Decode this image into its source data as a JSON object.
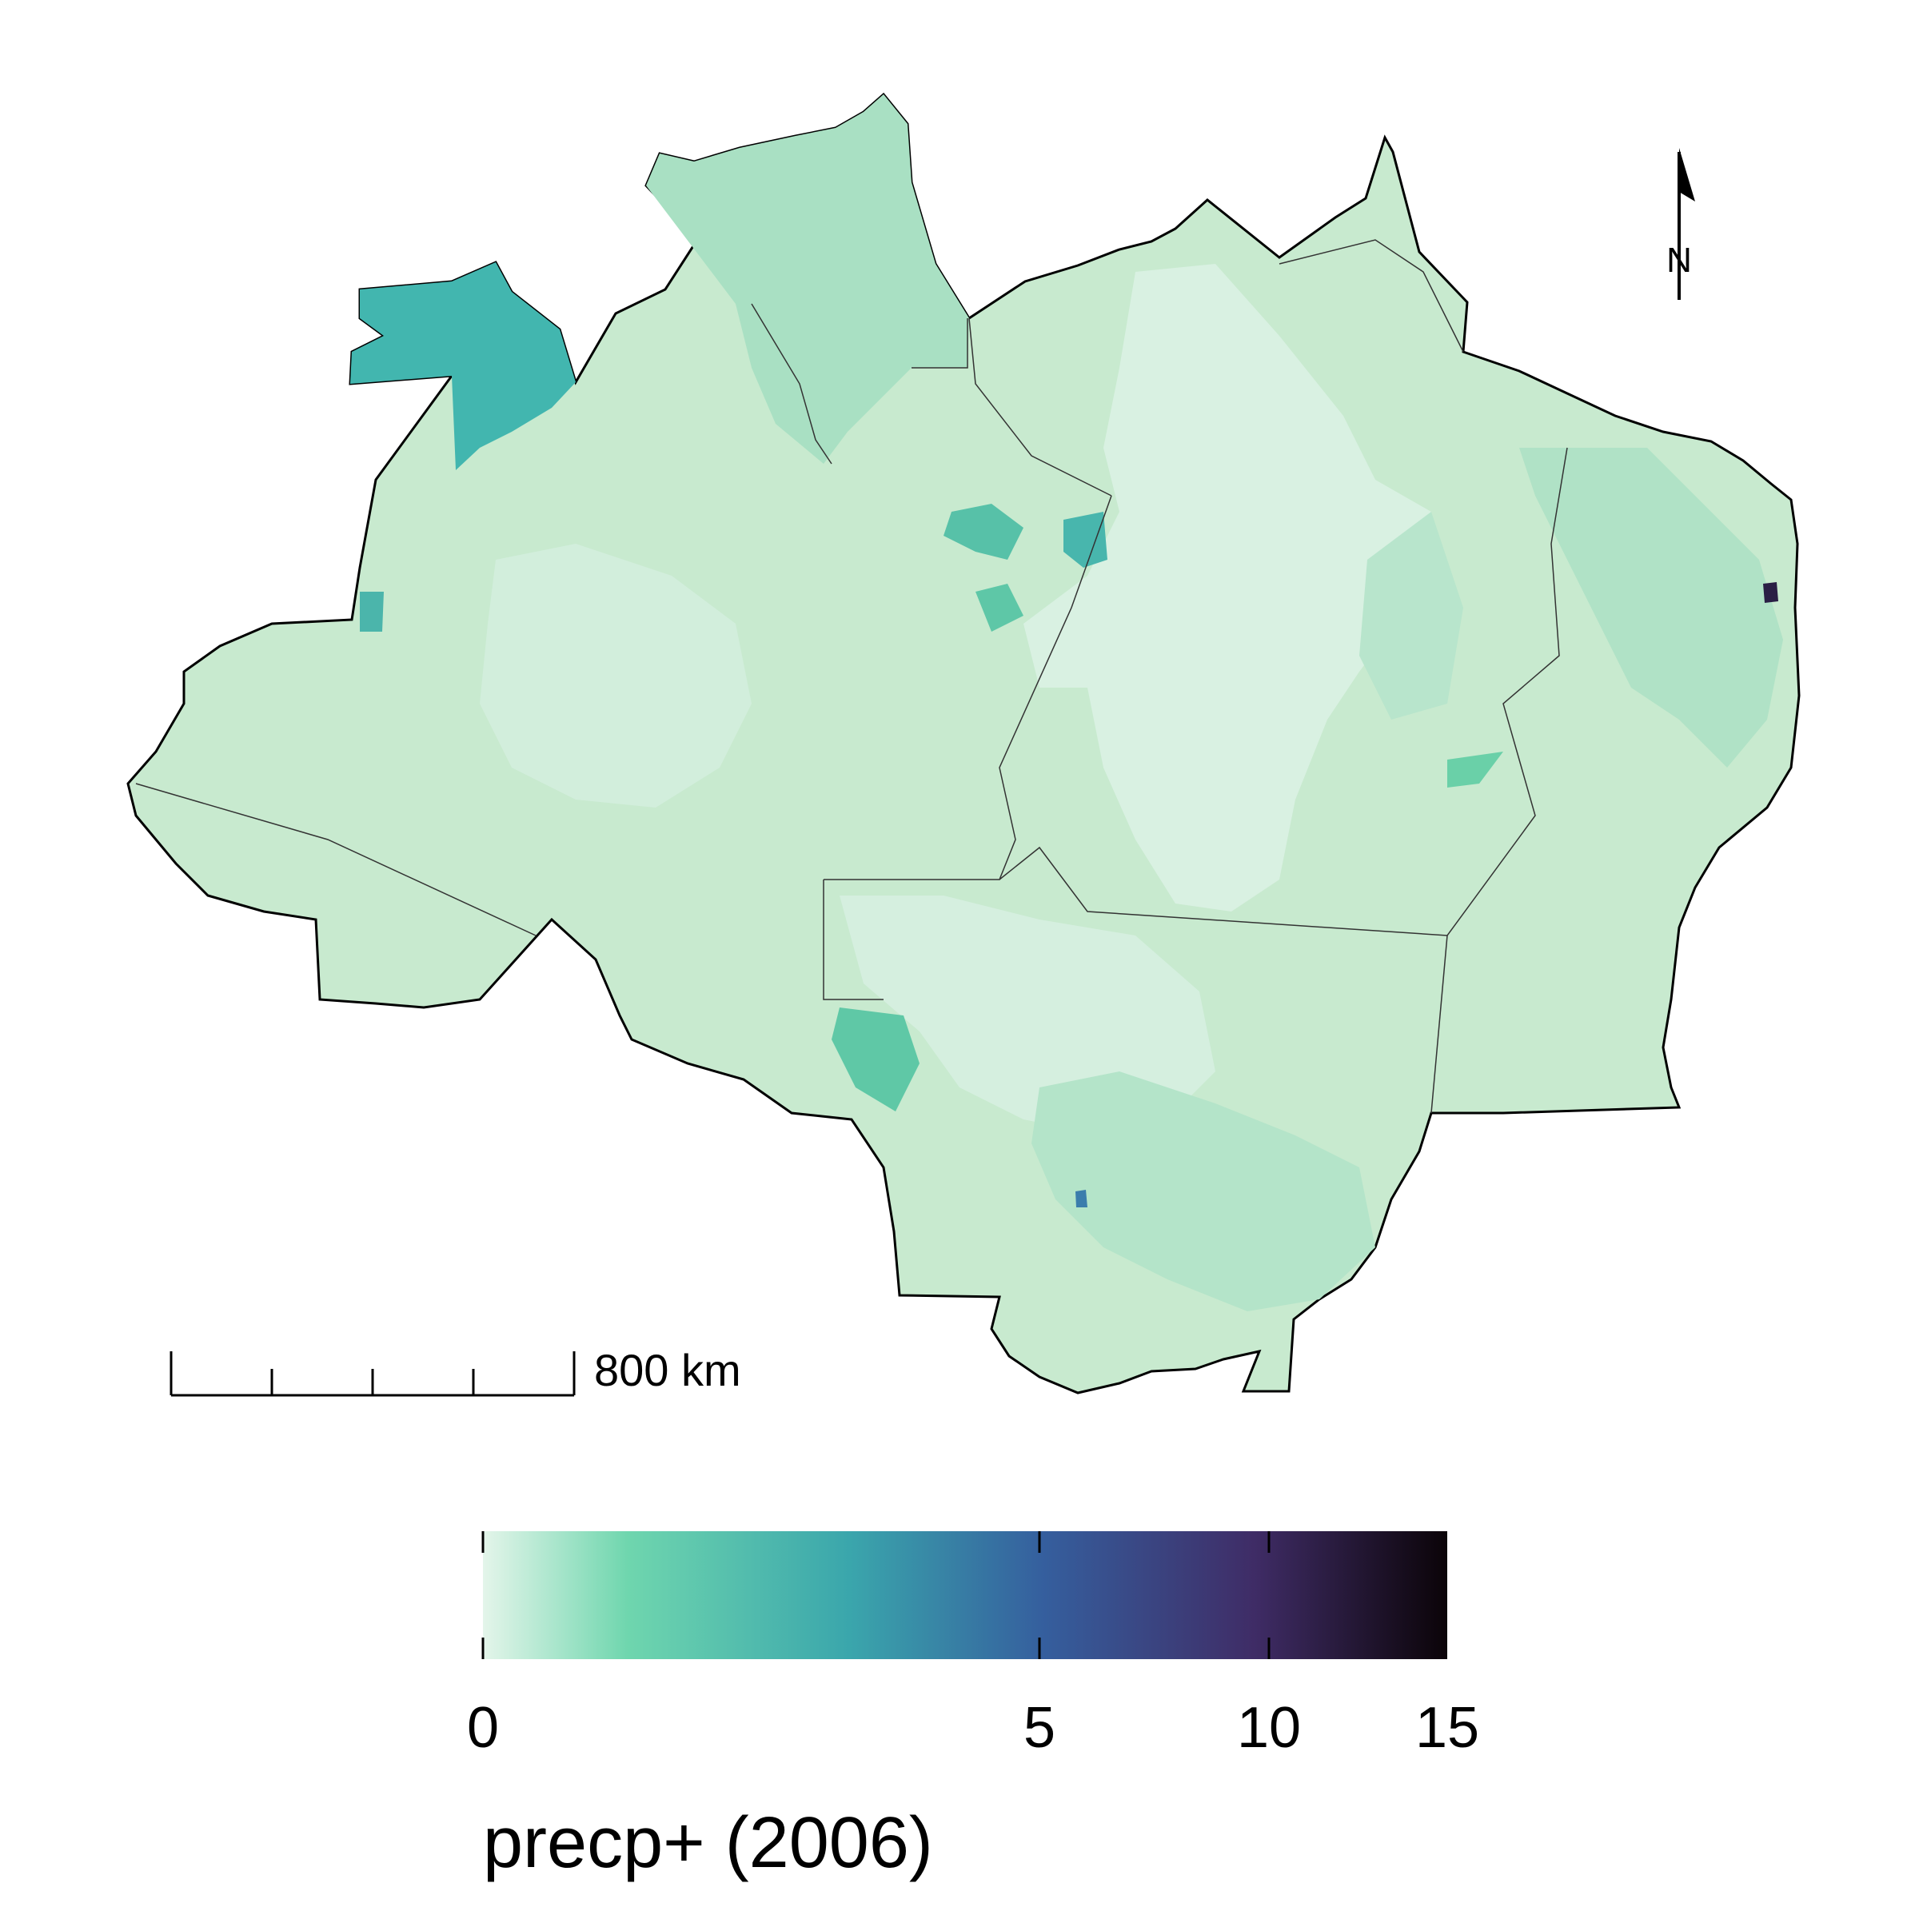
{
  "scale_bar": {
    "label": "800 km"
  },
  "north_arrow": {
    "label": "N",
    "icon": "north-arrow-icon"
  },
  "legend": {
    "title": "precp+ (2006)",
    "ticks": [
      "0",
      "5",
      "10",
      "15"
    ],
    "tick_values": [
      0,
      5,
      10,
      15
    ],
    "range": [
      0,
      15
    ],
    "colors": [
      "#e4f5ea",
      "#6fd6ae",
      "#3aa6ac",
      "#355f9e",
      "#3f2c66",
      "#0b0408"
    ]
  },
  "map": {
    "fill_base": "#c6e9d3",
    "region_colors": {
      "very_light": "#dcf2e4",
      "light": "#c9ebd6",
      "medium": "#aee3c6",
      "teal": "#42b6af",
      "dark_teal": "#339fb0",
      "dark": "#2a1f45"
    }
  }
}
